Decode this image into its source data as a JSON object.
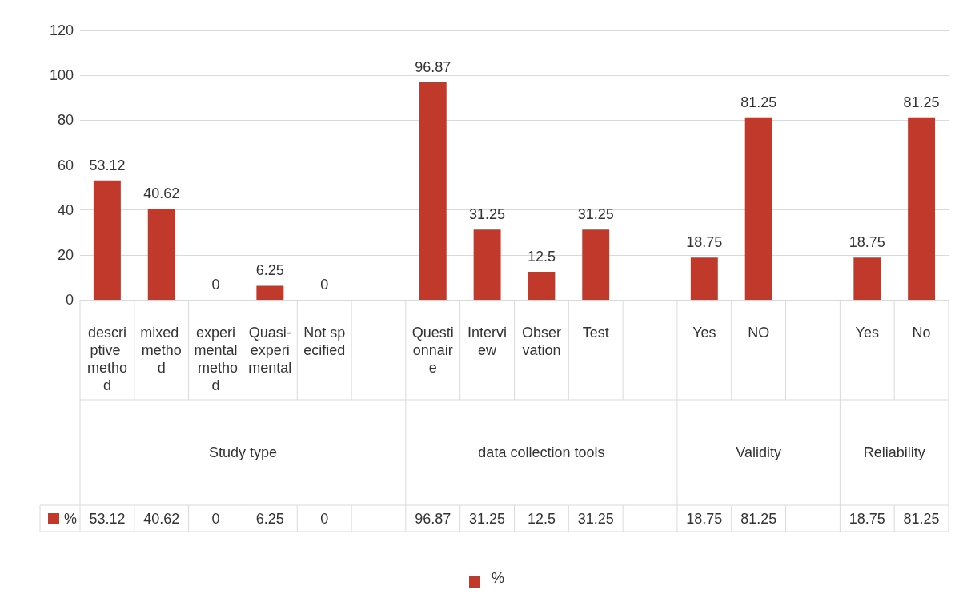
{
  "chart_data": {
    "type": "bar",
    "categories": [
      "descriptive method",
      "mixed method",
      "experimental method",
      "Quasi-experimental",
      "Not specified",
      null,
      "Questionnaire",
      "Interview",
      "Observation",
      "Test",
      null,
      "Yes",
      "NO",
      null,
      "Yes",
      "No"
    ],
    "series": [
      {
        "name": "%",
        "color": "#c0392b",
        "values": [
          53.12,
          40.62,
          0,
          6.25,
          0,
          null,
          96.87,
          31.25,
          12.5,
          31.25,
          null,
          18.75,
          81.25,
          null,
          18.75,
          81.25
        ],
        "value_labels": [
          "53.12",
          "40.62",
          "0",
          "6.25",
          "0",
          null,
          "96.87",
          "31.25",
          "12.5",
          "31.25",
          null,
          "18.75",
          "81.25",
          null,
          "18.75",
          "81.25"
        ]
      }
    ],
    "annotations": [
      "Study type",
      "data collection tools",
      "Validity",
      "Reliability"
    ],
    "ylim": [
      0,
      120
    ],
    "yticks": [
      0,
      20,
      40,
      60,
      80,
      100,
      120
    ],
    "grid": "y",
    "data_labels": true,
    "legend": "bottom"
  }
}
